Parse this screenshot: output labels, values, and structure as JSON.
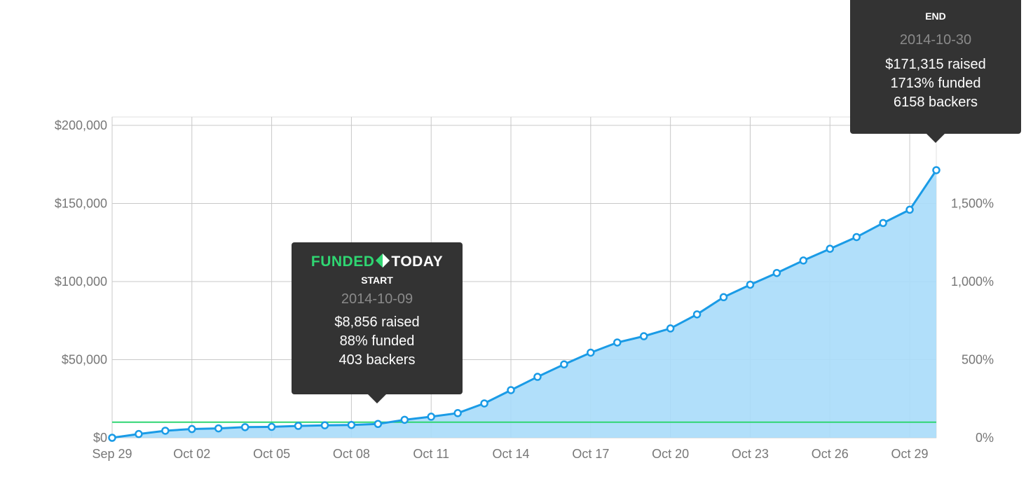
{
  "chart_data": {
    "type": "area",
    "x_dates": [
      "2014-09-29",
      "2014-09-30",
      "2014-10-01",
      "2014-10-02",
      "2014-10-03",
      "2014-10-04",
      "2014-10-05",
      "2014-10-06",
      "2014-10-07",
      "2014-10-08",
      "2014-10-09",
      "2014-10-10",
      "2014-10-11",
      "2014-10-12",
      "2014-10-13",
      "2014-10-14",
      "2014-10-15",
      "2014-10-16",
      "2014-10-17",
      "2014-10-18",
      "2014-10-19",
      "2014-10-20",
      "2014-10-21",
      "2014-10-22",
      "2014-10-23",
      "2014-10-24",
      "2014-10-25",
      "2014-10-26",
      "2014-10-27",
      "2014-10-28",
      "2014-10-29",
      "2014-10-30"
    ],
    "series": [
      {
        "values": [
          0,
          2400,
          4500,
          5600,
          6000,
          6800,
          7000,
          7600,
          8000,
          8200,
          8856,
          11500,
          13500,
          15800,
          22000,
          30500,
          39000,
          47000,
          54500,
          61000,
          65000,
          70000,
          79000,
          90000,
          98000,
          105500,
          113500,
          121000,
          128500,
          137500,
          146000,
          171315
        ]
      }
    ],
    "goal_line_value": 10000,
    "xticks": [
      "Sep 29",
      "Oct 02",
      "Oct 05",
      "Oct 08",
      "Oct 11",
      "Oct 14",
      "Oct 17",
      "Oct 20",
      "Oct 23",
      "Oct 26",
      "Oct 29"
    ],
    "xtick_dates": [
      "2014-09-29",
      "2014-10-02",
      "2014-10-05",
      "2014-10-08",
      "2014-10-11",
      "2014-10-14",
      "2014-10-17",
      "2014-10-20",
      "2014-10-23",
      "2014-10-26",
      "2014-10-29"
    ],
    "yticks_left": [
      "$0",
      "$50,000",
      "$100,000",
      "$150,000",
      "$200,000"
    ],
    "ytick_left_values": [
      0,
      50000,
      100000,
      150000,
      200000
    ],
    "yticks_right": [
      "0%",
      "500%",
      "1,000%",
      "1,500%"
    ],
    "ytick_right_values": [
      0,
      50000,
      100000,
      150000
    ],
    "ylim": [
      0,
      200000
    ],
    "grid": true,
    "colors": {
      "line": "#1a9be6",
      "fill": "#a8dcfa",
      "goal": "#2fd672",
      "grid": "#c8c8c8"
    }
  },
  "tooltips": {
    "start": {
      "logo_left": "FUNDED",
      "logo_right": "TODAY",
      "label": "START",
      "date": "2014-10-09",
      "raised": "$8,856 raised",
      "funded": "88% funded",
      "backers": "403 backers"
    },
    "end": {
      "label": "END",
      "date": "2014-10-30",
      "raised": "$171,315 raised",
      "funded": "1713% funded",
      "backers": "6158 backers"
    }
  }
}
